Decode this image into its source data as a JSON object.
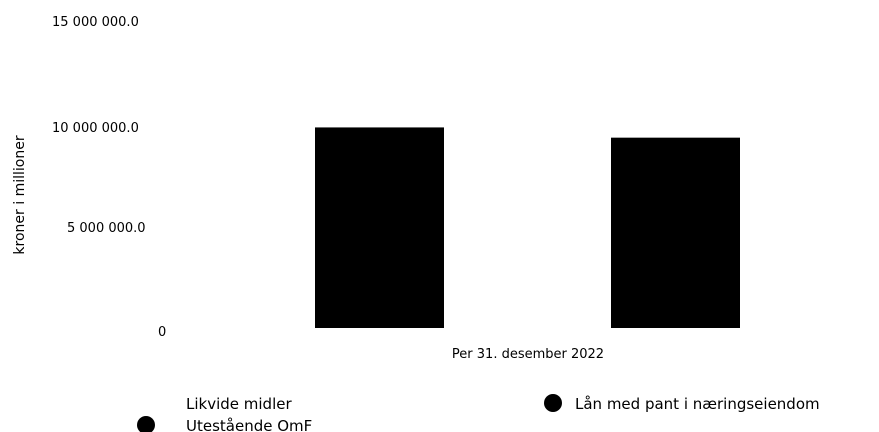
{
  "chart_data": {
    "type": "bar",
    "ylabel": "kroner i millioner",
    "categories": [
      "Per 31. desember 2022"
    ],
    "y_ticks": [
      "15 000 000.0",
      "10 000 000.0",
      "5 000 000.0",
      "0"
    ],
    "ylim": [
      0,
      15000000
    ],
    "series": [
      {
        "name": "Lån med pant i næringseiendom",
        "values": [
          9800000
        ],
        "color": "#000000"
      },
      {
        "name": "Utestående OmF",
        "values": [
          9300000
        ],
        "color": "#000000"
      }
    ],
    "legend_extra_label": "Likvide midler",
    "grid": false
  }
}
